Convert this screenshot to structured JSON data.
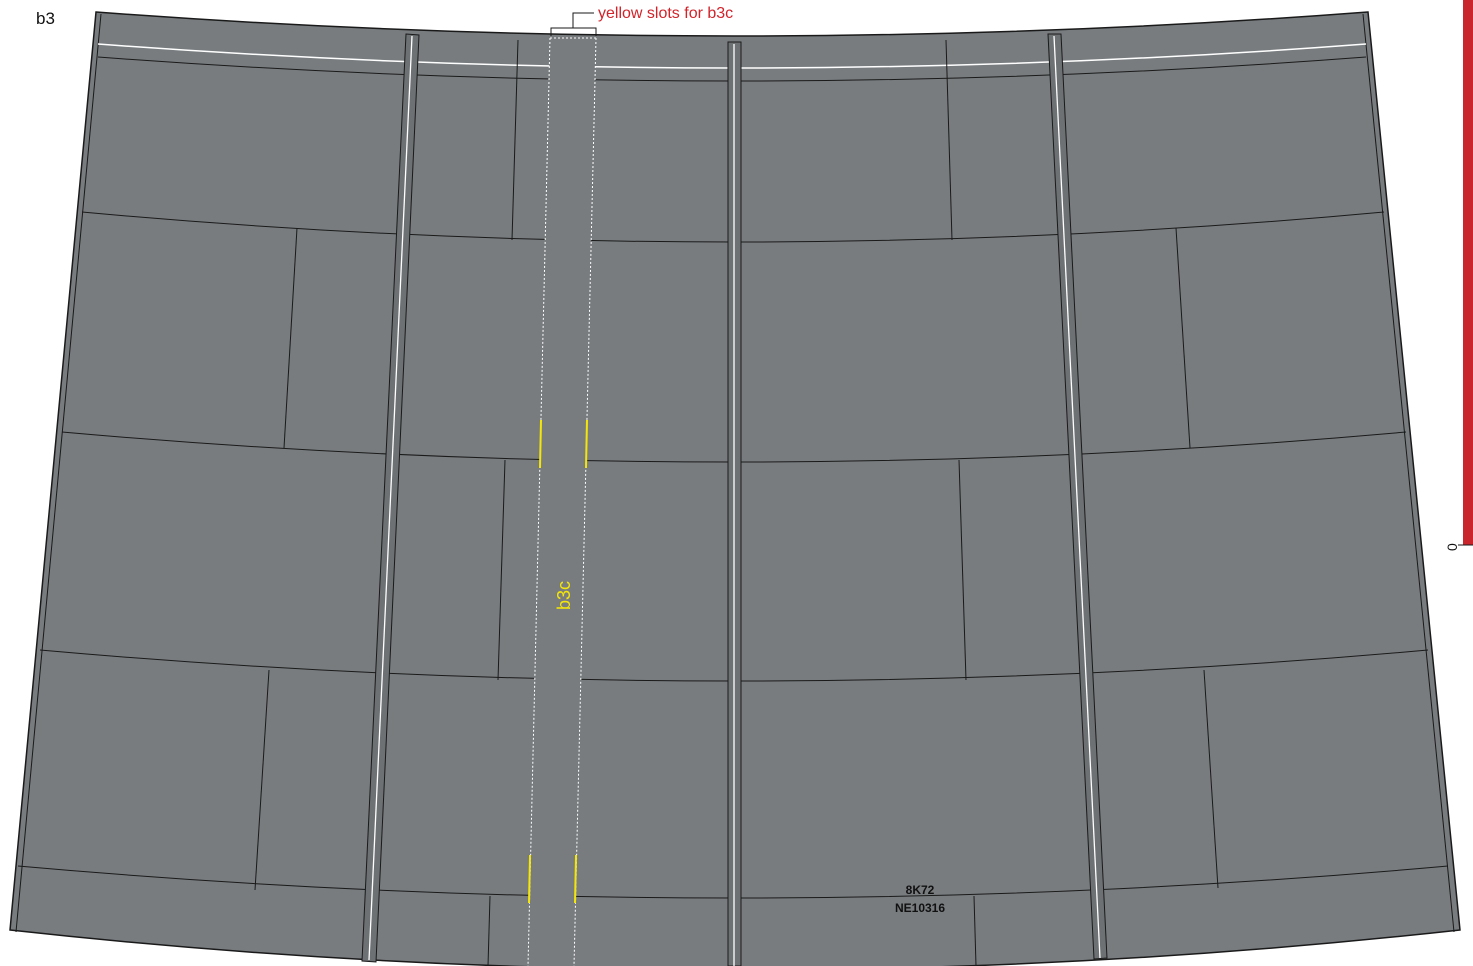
{
  "sheet": {
    "label": "b3",
    "code_line1": "8K72",
    "code_line2": "NE10316"
  },
  "callout": {
    "text": "yellow slots for b3c"
  },
  "strip": {
    "label": "b3c"
  },
  "scale": {
    "zero_label": "0"
  },
  "colors": {
    "panel_fill": "#787c7f",
    "line": "#1a1a1a",
    "highlight": "#ffffff",
    "slot": "#f5e60a",
    "accent": "#d2232a"
  }
}
